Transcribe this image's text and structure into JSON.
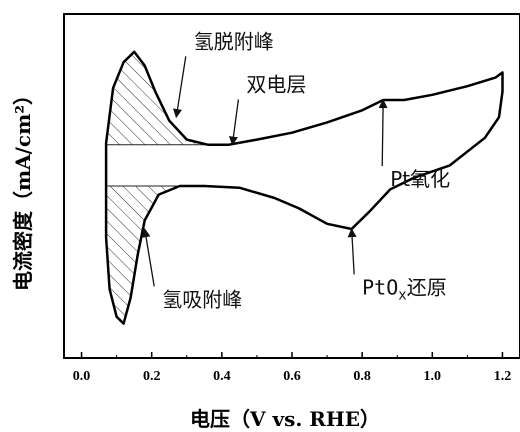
{
  "chart_data": {
    "type": "line",
    "title": "",
    "xlabel": "电压（V vs. RHE）",
    "ylabel": "电流密度（mA/cm²）",
    "xlim": [
      -0.05,
      1.25
    ],
    "ylim": [
      -1.0,
      1.0
    ],
    "x_ticks": [
      "0.0",
      "0.2",
      "0.4",
      "0.6",
      "0.8",
      "1.0",
      "1.2"
    ],
    "x_tick_values": [
      0.0,
      0.2,
      0.4,
      0.6,
      0.8,
      1.0,
      1.2
    ],
    "grid": false,
    "series": [
      {
        "points": [
          [
            0.07,
            -0.1
          ],
          [
            0.07,
            0.25
          ],
          [
            0.09,
            0.57
          ],
          [
            0.12,
            0.72
          ],
          [
            0.15,
            0.78
          ],
          [
            0.18,
            0.7
          ],
          [
            0.21,
            0.55
          ],
          [
            0.25,
            0.38
          ],
          [
            0.3,
            0.27
          ],
          [
            0.36,
            0.24
          ],
          [
            0.42,
            0.24
          ],
          [
            0.5,
            0.27
          ],
          [
            0.6,
            0.31
          ],
          [
            0.7,
            0.37
          ],
          [
            0.8,
            0.44
          ],
          [
            0.86,
            0.5
          ],
          [
            0.92,
            0.5
          ],
          [
            1.0,
            0.53
          ],
          [
            1.1,
            0.58
          ],
          [
            1.18,
            0.63
          ],
          [
            1.2,
            0.66
          ],
          [
            1.2,
            0.55
          ],
          [
            1.19,
            0.4
          ],
          [
            1.15,
            0.28
          ],
          [
            1.05,
            0.12
          ],
          [
            0.95,
            0.05
          ],
          [
            0.88,
            -0.02
          ],
          [
            0.82,
            -0.15
          ],
          [
            0.77,
            -0.25
          ],
          [
            0.7,
            -0.22
          ],
          [
            0.62,
            -0.13
          ],
          [
            0.55,
            -0.07
          ],
          [
            0.45,
            -0.01
          ],
          [
            0.35,
            0.0
          ],
          [
            0.28,
            0.0
          ],
          [
            0.22,
            -0.05
          ],
          [
            0.18,
            -0.2
          ],
          [
            0.16,
            -0.4
          ],
          [
            0.14,
            -0.65
          ],
          [
            0.12,
            -0.8
          ],
          [
            0.1,
            -0.76
          ],
          [
            0.08,
            -0.6
          ],
          [
            0.07,
            -0.3
          ],
          [
            0.07,
            -0.1
          ]
        ]
      }
    ],
    "hatched_regions": [
      "upper",
      "lower"
    ],
    "annotations": [
      {
        "text": "氢脱附峰",
        "x": 0.32,
        "y": 0.8,
        "arrow_to": [
          0.27,
          0.4
        ]
      },
      {
        "text": "双电层",
        "x": 0.47,
        "y": 0.55,
        "arrow_to": [
          0.43,
          0.24
        ]
      },
      {
        "text": "Pt氧化",
        "x": 0.88,
        "y": 0.0,
        "arrow_to": [
          0.86,
          0.5
        ]
      },
      {
        "text": "PtO",
        "subscript": "x",
        "suffix": "还原",
        "x": 0.8,
        "y": -0.63,
        "arrow_to": [
          0.77,
          -0.25
        ]
      },
      {
        "text": "氢吸附峰",
        "x": 0.23,
        "y": -0.7,
        "arrow_to": [
          0.18,
          -0.25
        ]
      }
    ]
  }
}
